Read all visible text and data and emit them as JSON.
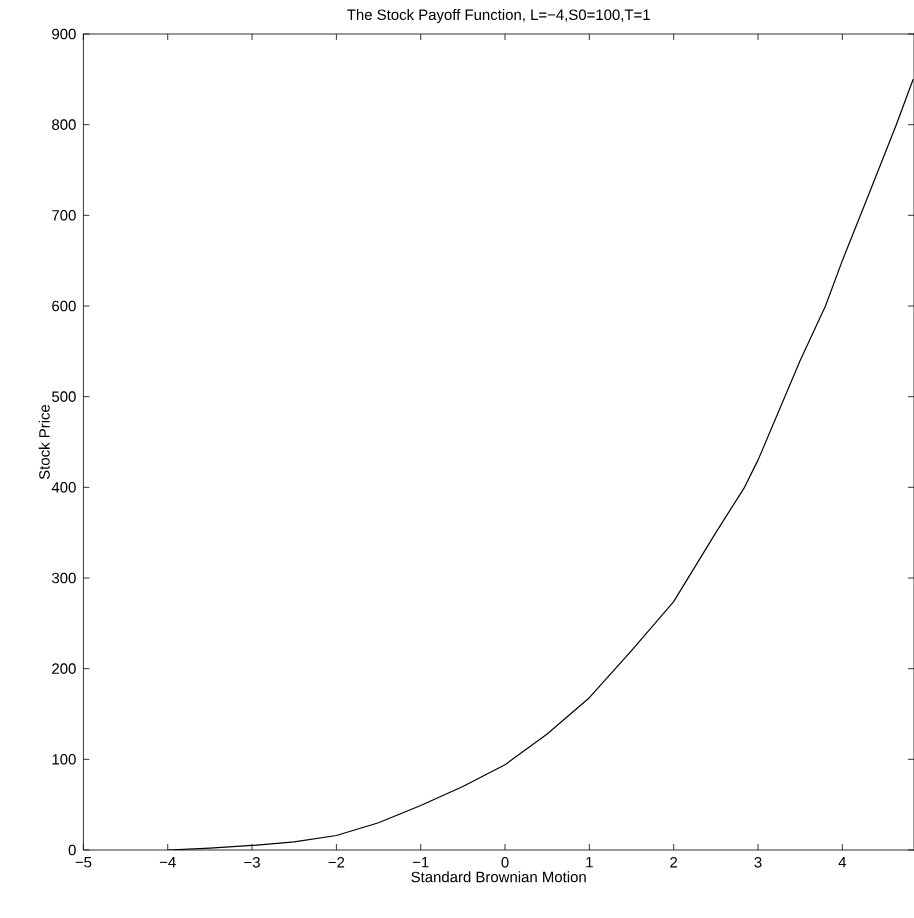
{
  "chart_data": {
    "type": "line",
    "title": "The Stock Payoff Function, L=−4,S0=100,T=1",
    "xlabel": "Standard Brownian Motion",
    "ylabel": "Stock Price",
    "series": [
      {
        "color": "#000000",
        "x": [
          -4,
          -3.5,
          -3,
          -2.5,
          -2,
          -1.5,
          -1,
          -0.5,
          0,
          0.5,
          1,
          1.5,
          2,
          2.5,
          2.84,
          3,
          3.5,
          3.8,
          4,
          4.3,
          4.64,
          4.84
        ],
        "values": [
          0,
          2,
          5,
          9,
          16,
          30,
          49,
          70,
          94,
          128,
          168,
          220,
          274,
          350,
          400,
          430,
          540,
          600,
          650,
          720,
          800,
          850
        ]
      }
    ],
    "xlim": [
      -5,
      4.85
    ],
    "ylim": [
      0,
      900
    ],
    "xticks": [
      {
        "value": -5,
        "label": "−5"
      },
      {
        "value": -4,
        "label": "−4"
      },
      {
        "value": -3,
        "label": "−3"
      },
      {
        "value": -2,
        "label": "−2"
      },
      {
        "value": -1,
        "label": "−1"
      },
      0,
      1,
      2,
      3,
      4
    ],
    "yticks": [
      0,
      100,
      200,
      300,
      400,
      500,
      600,
      700,
      800,
      900
    ],
    "marker": "none",
    "line_style": "solid"
  }
}
